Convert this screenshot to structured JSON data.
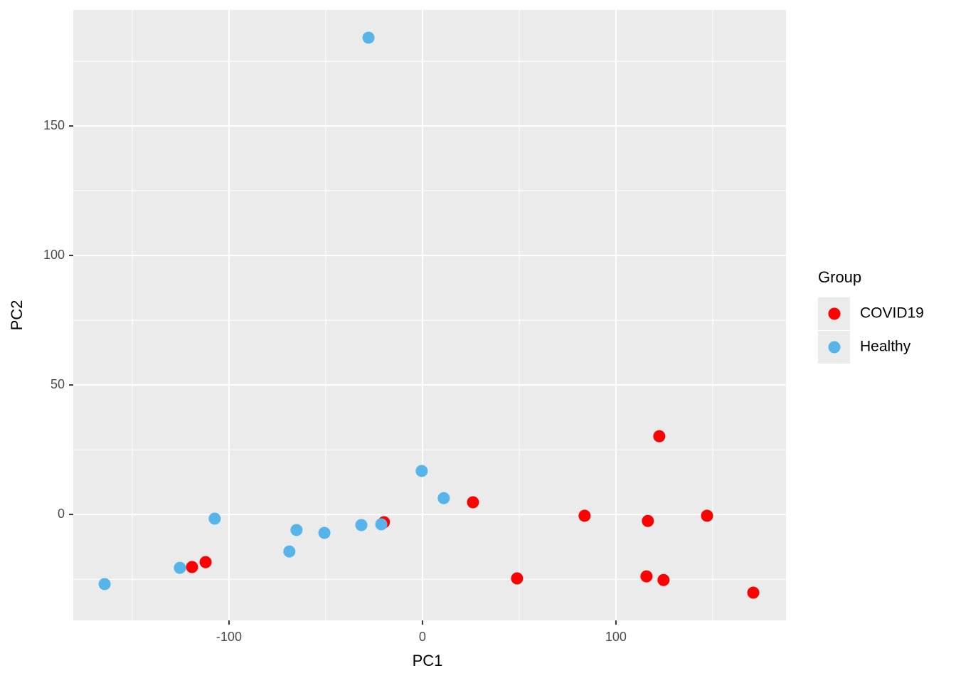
{
  "chart_data": {
    "type": "scatter",
    "x_label": "PC1",
    "y_label": "PC2",
    "legend_title": "Group",
    "legend_position": "right",
    "grid": true,
    "xlim": [
      -180.5,
      187.9
    ],
    "ylim": [
      -40.9,
      194.8
    ],
    "xticks": [
      -100,
      0,
      100
    ],
    "yticks": [
      0,
      50,
      100,
      150
    ],
    "series": [
      {
        "name": "COVID19",
        "color": "#ff0000",
        "x": [
          -119.1,
          -112.1,
          -19.9,
          26.1,
          48.9,
          83.8,
          122.4,
          116.5,
          115.8,
          124.6,
          147.1,
          171.0
        ],
        "values": [
          -20.3,
          -18.4,
          -3.0,
          4.7,
          -24.7,
          -0.5,
          30.2,
          -2.5,
          -23.9,
          -25.3,
          -0.5,
          -30.2
        ]
      },
      {
        "name": "Healthy",
        "color": "#56b4e9",
        "x": [
          -27.9,
          -164.3,
          -125.4,
          -107.4,
          -68.8,
          -65.1,
          -50.7,
          -31.6,
          -21.3,
          -0.4,
          11.0
        ],
        "values": [
          184.1,
          -26.9,
          -20.6,
          -1.6,
          -14.3,
          -6.0,
          -7.1,
          -4.1,
          -3.8,
          16.8,
          6.3
        ]
      }
    ]
  }
}
